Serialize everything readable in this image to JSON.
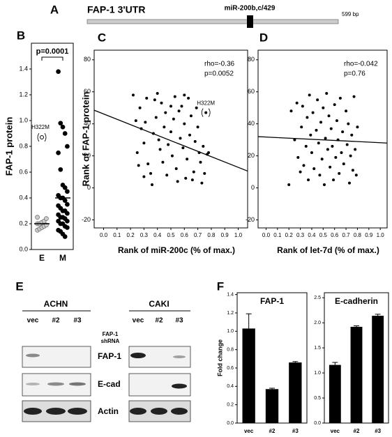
{
  "panel_labels": [
    "A",
    "B",
    "C",
    "D",
    "E",
    "F"
  ],
  "utr": {
    "title": "FAP-1 3'UTR",
    "site": "miR-200b,c/429",
    "length": "599 bp"
  },
  "chart_data": [
    {
      "type": "strip",
      "ylabel": "FAP-1 protein",
      "categories": [
        "E",
        "M"
      ],
      "ylim": [
        0,
        1.6
      ],
      "yticks": [
        {
          "value": 0,
          "label": "0.0"
        },
        0.2,
        0.4,
        0.6,
        0.8,
        {
          "value": 1,
          "label": "1.0"
        },
        1.2,
        1.4
      ],
      "series": [
        {
          "color": "#cccccc",
          "values": [
            0.15,
            0.16,
            0.17,
            0.18,
            0.19,
            0.2,
            0.2,
            0.21,
            0.22,
            0.24,
            0.25
          ],
          "outlier": {
            "label": "H322M",
            "value": 0.87
          }
        },
        {
          "color": "#000000",
          "values": [
            1.38,
            0.98,
            0.95,
            0.9,
            0.8,
            0.75,
            0.62,
            0.5,
            0.48,
            0.45,
            0.42,
            0.4,
            0.4,
            0.38,
            0.35,
            0.34,
            0.32,
            0.3,
            0.3,
            0.28,
            0.27,
            0.25,
            0.25,
            0.24,
            0.22,
            0.22,
            0.2,
            0.2,
            0.18,
            0.17,
            0.15,
            0.14,
            0.12,
            0.1
          ]
        }
      ],
      "medians": [
        0.2,
        0.4
      ],
      "significance": "p=0.0001"
    },
    {
      "type": "scatter",
      "xlabel": "Rank of miR-200c (% of max.)",
      "ylabel": "Rank of FAP-1 protein",
      "xlim": [
        -0.07,
        1.07
      ],
      "ylim": [
        -25,
        86
      ],
      "xticks": [
        {
          "value": 0,
          "label": "0.0"
        },
        0.1,
        0.2,
        0.3,
        0.4,
        0.5,
        0.6,
        0.7,
        0.8,
        0.9,
        {
          "value": 1,
          "label": "1.0"
        }
      ],
      "yticks": [
        -20,
        0,
        20,
        40,
        60,
        80
      ],
      "annotations": [
        "rho=-0.36",
        "p=0.0052"
      ],
      "x": [
        0.22,
        0.24,
        0.25,
        0.26,
        0.27,
        0.28,
        0.3,
        0.31,
        0.32,
        0.33,
        0.35,
        0.36,
        0.37,
        0.38,
        0.39,
        0.4,
        0.41,
        0.42,
        0.43,
        0.44,
        0.45,
        0.46,
        0.47,
        0.48,
        0.5,
        0.51,
        0.52,
        0.53,
        0.54,
        0.55,
        0.56,
        0.57,
        0.58,
        0.59,
        0.6,
        0.61,
        0.62,
        0.63,
        0.64,
        0.65,
        0.66,
        0.67,
        0.68,
        0.69,
        0.7,
        0.71,
        0.72,
        0.73,
        0.74,
        0.75,
        0.77,
        0.78,
        0.3,
        0.5,
        0.6
      ],
      "values": [
        58,
        42,
        22,
        14,
        50,
        37,
        28,
        41,
        56,
        15,
        9,
        2,
        34,
        55,
        44,
        59,
        30,
        24,
        53,
        16,
        38,
        47,
        8,
        27,
        35,
        20,
        43,
        57,
        12,
        4,
        48,
        31,
        51,
        25,
        40,
        6,
        18,
        56,
        33,
        45,
        5,
        10,
        29,
        50,
        38,
        22,
        16,
        3,
        26,
        9,
        21,
        22,
        7,
        51,
        58
      ],
      "labeled_point": {
        "label": "H322M",
        "x": 0.76,
        "y": 47
      },
      "fit_line": {
        "x": [
          -0.07,
          1.07
        ],
        "y": [
          48.5,
          10.5
        ]
      }
    },
    {
      "type": "scatter",
      "xlabel": "Rank of let-7d (% of max.)",
      "xlim": [
        -0.07,
        1.06
      ],
      "ylim": [
        -25,
        86
      ],
      "xticks": [
        {
          "value": 0,
          "label": "0.0"
        },
        0.1,
        0.2,
        0.3,
        0.4,
        0.5,
        0.6,
        0.7,
        0.8,
        0.9,
        {
          "value": 1,
          "label": "1.0"
        }
      ],
      "yticks": [
        -20,
        0,
        20,
        40,
        60,
        80
      ],
      "annotations": [
        "rho=-0.042",
        "p=0.76"
      ],
      "x": [
        0.2,
        0.22,
        0.25,
        0.27,
        0.28,
        0.3,
        0.31,
        0.32,
        0.33,
        0.35,
        0.36,
        0.37,
        0.38,
        0.39,
        0.4,
        0.41,
        0.42,
        0.44,
        0.45,
        0.46,
        0.47,
        0.48,
        0.49,
        0.5,
        0.51,
        0.52,
        0.53,
        0.54,
        0.55,
        0.56,
        0.57,
        0.58,
        0.59,
        0.6,
        0.61,
        0.62,
        0.63,
        0.64,
        0.65,
        0.66,
        0.67,
        0.68,
        0.7,
        0.71,
        0.72,
        0.73,
        0.74,
        0.75,
        0.76,
        0.77,
        0.78,
        0.8,
        0.79
      ],
      "values": [
        2,
        48,
        30,
        53,
        19,
        10,
        38,
        51,
        14,
        26,
        44,
        5,
        58,
        33,
        22,
        47,
        12,
        36,
        55,
        28,
        8,
        41,
        18,
        50,
        2,
        31,
        59,
        24,
        45,
        13,
        37,
        26,
        5,
        52,
        19,
        42,
        30,
        9,
        56,
        22,
        35,
        15,
        48,
        27,
        40,
        3,
        20,
        33,
        11,
        57,
        24,
        38,
        8
      ],
      "fit_line": {
        "x": [
          -0.07,
          1.06
        ],
        "y": [
          32,
          28
        ]
      }
    },
    {
      "type": "bar",
      "title": "FAP-1",
      "ylabel": "Fold change",
      "categories": [
        "vec",
        "#2",
        "#3"
      ],
      "values": [
        1.03,
        0.37,
        0.66
      ],
      "error": [
        0.16,
        0.01,
        0.01
      ],
      "color": "#000000",
      "ylim": [
        0,
        1.42
      ],
      "yticks": [
        {
          "value": 0,
          "label": "0.0"
        },
        0.2,
        0.4,
        0.6,
        0.8,
        {
          "value": 1,
          "label": "1.0"
        },
        1.2,
        1.4
      ]
    },
    {
      "type": "bar",
      "title": "E-cadherin",
      "categories": [
        "vec",
        "#2",
        "#3"
      ],
      "values": [
        1.16,
        1.92,
        2.14
      ],
      "error": [
        0.05,
        0.02,
        0.03
      ],
      "color": "#000000",
      "ylim": [
        0,
        2.6
      ],
      "yticks": [
        {
          "value": 0,
          "label": "0.0"
        },
        0.5,
        {
          "value": 1,
          "label": "1.0"
        },
        1.5,
        {
          "value": 2,
          "label": "2.0"
        },
        2.5
      ]
    }
  ],
  "blot": {
    "panels": [
      {
        "title": "ACHN",
        "lanes": [
          "vec",
          "#2",
          "#3"
        ]
      },
      {
        "title": "CAKI",
        "lanes": [
          "vec",
          "#2",
          "#3"
        ]
      }
    ],
    "rows": [
      "FAP-1",
      "E-cad",
      "Actin"
    ],
    "shrna_label": [
      "FAP-1",
      "shRNA"
    ]
  }
}
